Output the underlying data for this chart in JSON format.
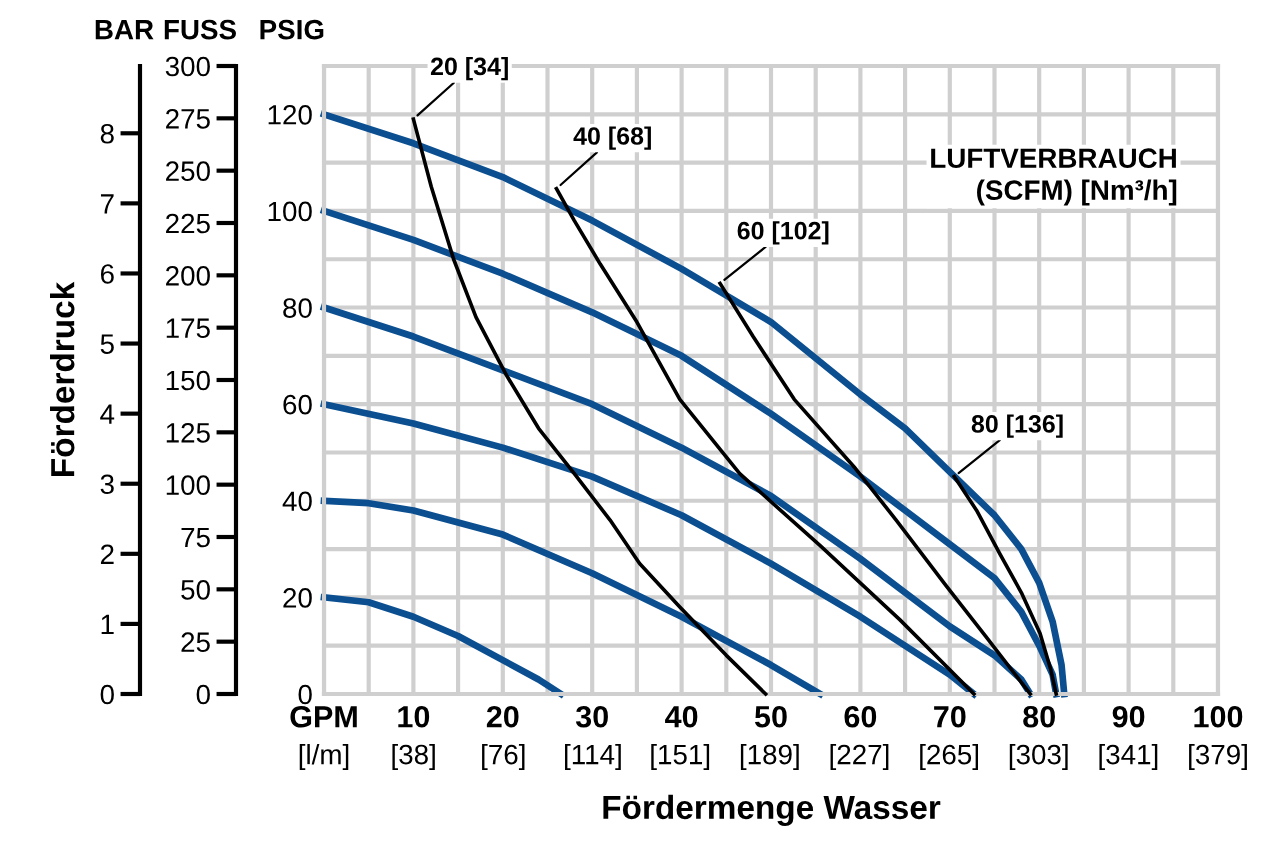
{
  "chart_data": {
    "type": "line",
    "xlabel": "Fördermenge Wasser",
    "ylabel": "PSIG",
    "y2label": "FUSS",
    "y3label": "Förderdruck",
    "annotations": [
      "BAR",
      "LUFTVERBRAUCH\n(SCFM) [Nm³/h]"
    ],
    "xlim": [
      0,
      100
    ],
    "ylim": [
      0,
      130
    ],
    "y2lim": [
      0,
      300
    ],
    "y3lim": [
      0,
      8.96
    ],
    "x2lim": [
      0,
      379
    ],
    "xticks": [
      {
        "value": 0,
        "label": "GPM"
      },
      {
        "value": 5,
        "label": null
      },
      10,
      {
        "value": 15,
        "label": null
      },
      20,
      {
        "value": 25,
        "label": null
      },
      30,
      {
        "value": 35,
        "label": null
      },
      40,
      {
        "value": 45,
        "label": null
      },
      50,
      {
        "value": 55,
        "label": null
      },
      60,
      {
        "value": 65,
        "label": null
      },
      70,
      {
        "value": 75,
        "label": null
      },
      80,
      {
        "value": 85,
        "label": null
      },
      90,
      {
        "value": 95,
        "label": null
      },
      100
    ],
    "x2ticks": [
      {
        "value": 0,
        "label": "[l/m]"
      },
      {
        "value": 38,
        "label": "[38]"
      },
      {
        "value": 76,
        "label": "[76]"
      },
      {
        "value": 114,
        "label": "[114]"
      },
      {
        "value": 151,
        "label": "[151]"
      },
      {
        "value": 189,
        "label": "[189]"
      },
      {
        "value": 227,
        "label": "[227]"
      },
      {
        "value": 265,
        "label": "[265]"
      },
      {
        "value": 303,
        "label": "[303]"
      },
      {
        "value": 341,
        "label": "[341]"
      },
      {
        "value": 379,
        "label": "[379]"
      }
    ],
    "yticks": [
      0,
      {
        "value": 10,
        "label": null
      },
      20,
      {
        "value": 30,
        "label": null
      },
      40,
      {
        "value": 50,
        "label": null
      },
      60,
      {
        "value": 70,
        "label": null
      },
      80,
      {
        "value": 90,
        "label": null
      },
      100,
      {
        "value": 110,
        "label": null
      },
      120
    ],
    "y2ticks": [
      0,
      25,
      50,
      75,
      100,
      125,
      150,
      175,
      200,
      225,
      250,
      275,
      300
    ],
    "y3ticks": [
      0,
      1,
      2,
      3,
      4,
      5,
      6,
      7,
      8
    ],
    "grid": true,
    "legend": false,
    "marker": "none",
    "line_style": "solid",
    "series": [
      {
        "color": "#0b4f91",
        "x": [
          0,
          10,
          20,
          30,
          40,
          50,
          60,
          65,
          70,
          75,
          78,
          80,
          81.5,
          82.5,
          82.8
        ],
        "values": [
          120,
          114,
          107,
          98,
          88,
          77,
          62,
          55,
          46,
          37,
          30,
          23,
          15,
          6,
          0
        ]
      },
      {
        "color": "#0b4f91",
        "x": [
          0,
          10,
          20,
          30,
          40,
          50,
          60,
          65,
          70,
          75,
          78,
          80,
          81.5,
          81.9
        ],
        "values": [
          100,
          94,
          87,
          79,
          70,
          58,
          45,
          38,
          31,
          24,
          17,
          10,
          4,
          0
        ]
      },
      {
        "color": "#0b4f91",
        "x": [
          0,
          10,
          20,
          30,
          40,
          50,
          60,
          65,
          70,
          75,
          78,
          79
        ],
        "values": [
          80,
          74,
          67,
          60,
          51,
          41,
          28,
          21,
          14,
          8,
          3,
          0
        ]
      },
      {
        "color": "#0b4f91",
        "x": [
          0,
          10,
          20,
          30,
          40,
          50,
          60,
          65,
          70,
          72.7
        ],
        "values": [
          60,
          56,
          51,
          45,
          37,
          27,
          16,
          10,
          4,
          0
        ]
      },
      {
        "color": "#0b4f91",
        "x": [
          0,
          5,
          10,
          20,
          30,
          40,
          50,
          55.5
        ],
        "values": [
          40,
          39.5,
          38,
          33,
          25,
          16,
          6,
          0
        ]
      },
      {
        "color": "#0b4f91",
        "x": [
          0,
          5,
          10,
          15,
          20,
          24,
          26.5
        ],
        "values": [
          20,
          19,
          16,
          12,
          7,
          3,
          0
        ]
      },
      {
        "name": "20 [34]",
        "color": "#000000",
        "x": [
          10,
          12,
          14.5,
          17,
          20.4,
          24,
          28,
          32,
          35.3,
          39.8,
          45,
          49.4
        ],
        "values": [
          119,
          105,
          90,
          78,
          66,
          55,
          45.6,
          36,
          27,
          18,
          8,
          0
        ]
      },
      {
        "name": "40 [68]",
        "color": "#000000",
        "x": [
          26,
          28,
          30.9,
          35,
          39.8,
          46.5,
          55.5,
          64.4,
          72.7
        ],
        "values": [
          104.6,
          98,
          89,
          77,
          61,
          45.6,
          30.7,
          15.4,
          0
        ]
      },
      {
        "name": "60 [102]",
        "color": "#000000",
        "x": [
          44.3,
          48,
          52.6,
          59.3,
          64,
          69.6,
          74,
          79
        ],
        "values": [
          85,
          74,
          61,
          47,
          36,
          22.4,
          12,
          0
        ]
      },
      {
        "name": "80 [136]",
        "color": "#000000",
        "x": [
          70.5,
          73,
          75.6,
          78,
          80.1,
          81.3,
          81.9
        ],
        "values": [
          45,
          38,
          29,
          21,
          12.5,
          5,
          0
        ]
      }
    ]
  }
}
